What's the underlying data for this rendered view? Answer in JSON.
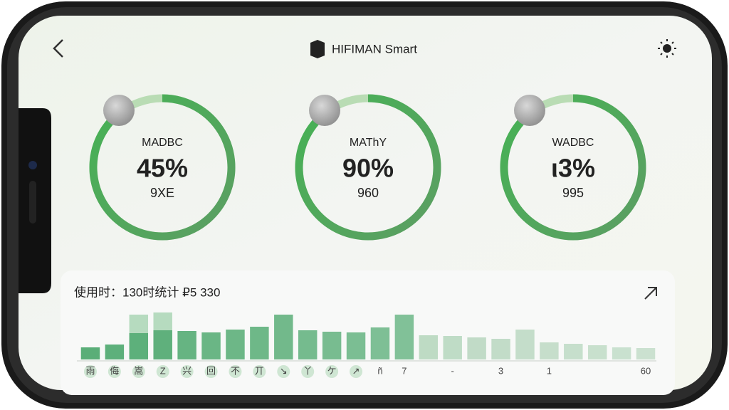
{
  "header": {
    "title": "HIFIMAN Smart"
  },
  "gauges": [
    {
      "label": "MADBC",
      "value": "45%",
      "sub": "9XE"
    },
    {
      "label": "MAThY",
      "value": "90%",
      "sub": "960"
    },
    {
      "label": "WADBC",
      "value": "ι3%",
      "sub": "995"
    }
  ],
  "usage_chart": {
    "title": "使用时：130时统计 ₽5 330",
    "values": [
      17,
      21,
      37,
      41,
      40,
      38,
      42,
      46,
      63,
      41,
      39,
      38,
      45,
      63,
      34,
      33,
      31,
      29,
      42,
      24,
      22,
      20,
      17,
      16
    ],
    "ghost_values": [
      null,
      null,
      63,
      66,
      null,
      null,
      null,
      null,
      null,
      null,
      null,
      null,
      null,
      null,
      null,
      null,
      null,
      null,
      null,
      null,
      null,
      null,
      null,
      null
    ],
    "labels": [
      "雨",
      "侮",
      "嵩",
      "Z",
      "兴",
      "回",
      "不",
      "丌",
      "↘",
      "丫",
      "ケ",
      "↗",
      "ñ",
      "7",
      null,
      "-",
      null,
      "3",
      null,
      "1",
      null,
      null,
      null,
      "60"
    ]
  }
}
